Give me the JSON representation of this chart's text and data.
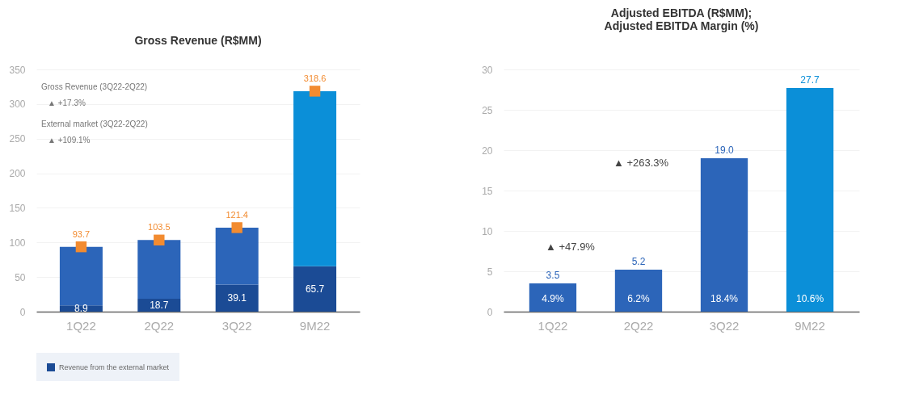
{
  "chart_data": [
    {
      "type": "bar",
      "title": "Gross Revenue (R$MM)",
      "categories": [
        "1Q22",
        "2Q22",
        "3Q22",
        "9M22"
      ],
      "stacked": true,
      "legend": "bottom left",
      "grid": "y",
      "ylim": [
        0,
        350
      ],
      "yticks": [
        0,
        50,
        100,
        150,
        200,
        250,
        300,
        350
      ],
      "series": [
        {
          "name": "Revenue from the external market",
          "color": "#1b4b95",
          "values": [
            8.9,
            18.7,
            39.1,
            65.7
          ],
          "value_labels": [
            "8.9",
            "18.7",
            "39.1",
            "65.7"
          ]
        },
        {
          "colors": [
            "#2c65b9",
            "#2c65b9",
            "#2c65b9",
            "#0b8fd8"
          ],
          "values": [
            84.8,
            84.8,
            82.3,
            252.9
          ]
        },
        {
          "type": "scatter",
          "marker": "square",
          "x": [
            "1Q22",
            "2Q22",
            "3Q22",
            "9M22"
          ],
          "color": "#f28b30",
          "values": [
            93.7,
            103.5,
            121.4,
            318.6
          ],
          "value_labels": [
            "93.7",
            "103.5",
            "121.4",
            "318.6"
          ]
        }
      ],
      "annotations": [
        "Gross Revenue (3Q22-2Q22)",
        "▲ +17.3%",
        "External market (3Q22-2Q22)",
        "▲ +109.1%"
      ]
    },
    {
      "type": "bar",
      "title": "Adjusted EBITDA (R$MM);\nAdjusted EBITDA Margin (%)",
      "categories": [
        "1Q22",
        "2Q22",
        "3Q22",
        "9M22"
      ],
      "grid": "y",
      "ylim": [
        0,
        30
      ],
      "yticks": [
        0,
        5,
        10,
        15,
        20,
        25,
        30
      ],
      "series": [
        {
          "colors": [
            "#2c65b9",
            "#2c65b9",
            "#2c65b9",
            "#0b8fd8"
          ],
          "values": [
            3.5,
            5.2,
            19.0,
            27.7
          ],
          "value_labels": [
            "3.5",
            "5.2",
            "19.0",
            "27.7"
          ]
        }
      ],
      "annotations": [
        "▲ +47.9%",
        "▲ +263.3%",
        "4.9%",
        "6.2%",
        "18.4%",
        "10.6%"
      ]
    }
  ]
}
